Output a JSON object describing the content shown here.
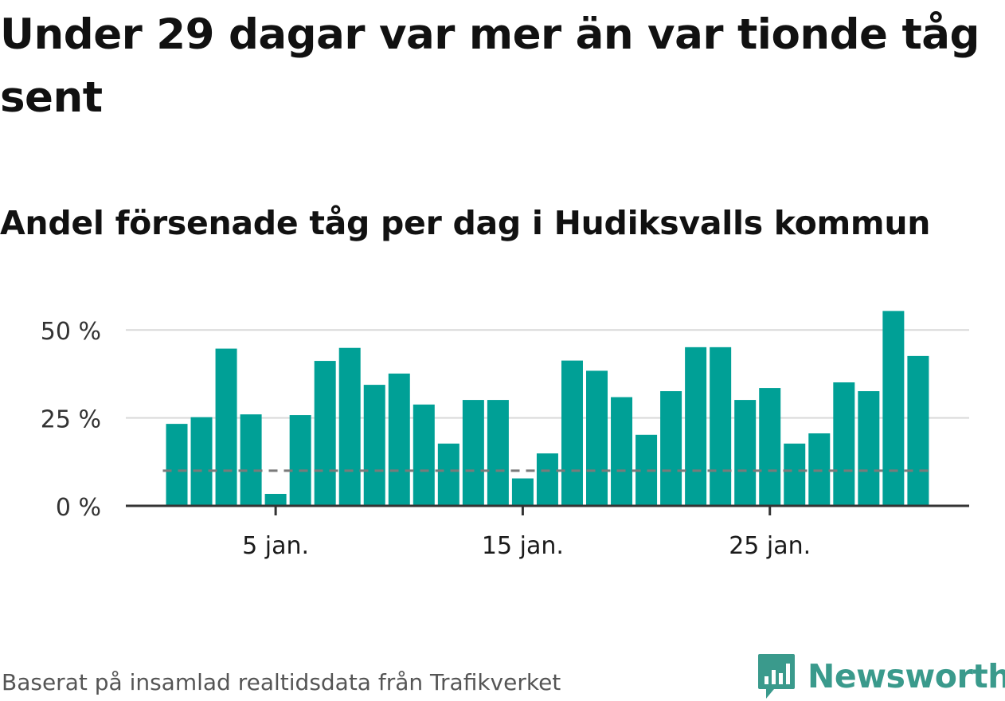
{
  "header": {
    "title": "Under 29 dagar var mer än var tionde tåg sent",
    "subtitle": "Andel försenade tåg per dag i Hudiksvalls kommun"
  },
  "footer": {
    "source": "Baserat på insamlad realtidsdata från Trafikverket",
    "brand": "Newsworthy"
  },
  "colors": {
    "bar": "#00a096",
    "reference_line": "#7a7a7a",
    "grid": "#d9d9d9",
    "axis": "#333333",
    "brand": "#3a9a8c"
  },
  "chart_data": {
    "type": "bar",
    "x": [
      1,
      2,
      3,
      4,
      5,
      6,
      7,
      8,
      9,
      10,
      11,
      12,
      13,
      14,
      15,
      16,
      17,
      18,
      19,
      20,
      21,
      22,
      23,
      24,
      25,
      26,
      27,
      28,
      29,
      30,
      31
    ],
    "values": [
      23.3,
      25.2,
      44.7,
      26.0,
      3.4,
      25.8,
      41.2,
      44.9,
      34.4,
      37.6,
      28.8,
      17.7,
      30.1,
      30.1,
      7.8,
      14.9,
      41.3,
      38.4,
      30.9,
      20.2,
      32.6,
      45.1,
      45.1,
      30.1,
      33.5,
      17.7,
      20.6,
      35.1,
      32.6,
      55.4,
      42.6
    ],
    "reference_line": 10,
    "ylim": [
      0,
      55
    ],
    "y_ticks": [
      {
        "value": 0,
        "label": "0 %"
      },
      {
        "value": 25,
        "label": "25 %"
      },
      {
        "value": 50,
        "label": "50 %"
      }
    ],
    "x_ticks": [
      {
        "value": 5,
        "label": "5 jan."
      },
      {
        "value": 15,
        "label": "15 jan."
      },
      {
        "value": 25,
        "label": "25 jan."
      }
    ],
    "grid": true,
    "legend": false
  }
}
